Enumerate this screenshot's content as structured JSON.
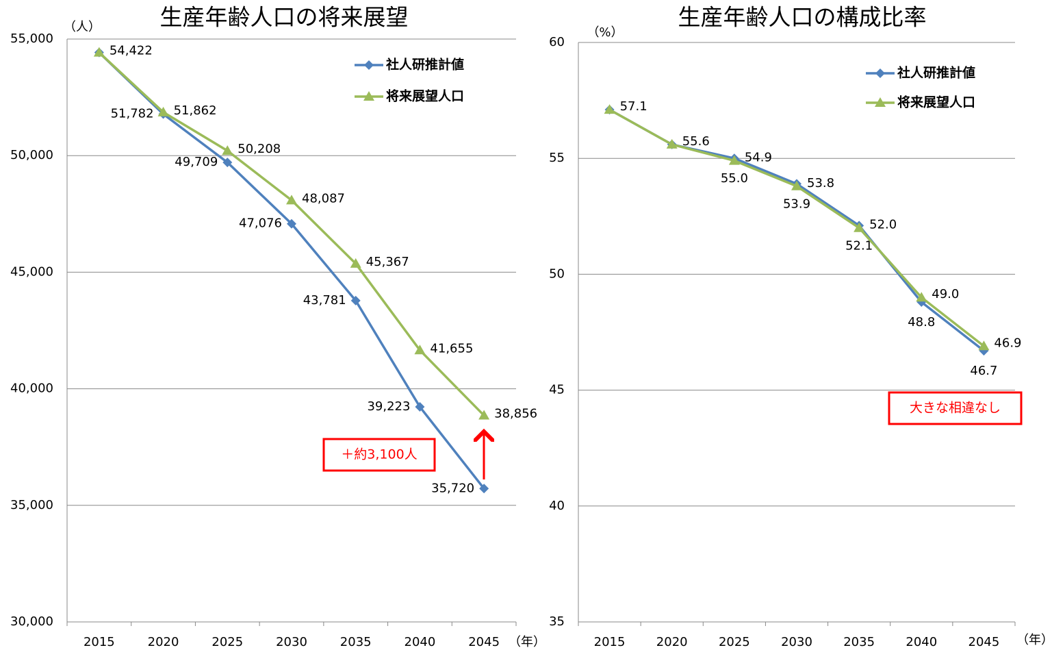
{
  "chart_data": [
    {
      "type": "line",
      "title": "生産年齢人口の将来展望",
      "y_label": "（人）",
      "x_label": "（年）",
      "categories": [
        "2015",
        "2020",
        "2025",
        "2030",
        "2035",
        "2040",
        "2045"
      ],
      "ylim": [
        30000,
        55000
      ],
      "yticks": [
        {
          "value": 30000,
          "label": "30,000"
        },
        {
          "value": 35000,
          "label": "35,000"
        },
        {
          "value": 40000,
          "label": "40,000"
        },
        {
          "value": 45000,
          "label": "45,000"
        },
        {
          "value": 50000,
          "label": "50,000"
        },
        {
          "value": 55000,
          "label": "55,000"
        }
      ],
      "grid": true,
      "legend": "top-right",
      "series": [
        {
          "name": "社人研推計値",
          "color": "#4f81bd",
          "marker": "diamond",
          "values": [
            54422,
            51782,
            49709,
            47076,
            43781,
            39223,
            35720
          ],
          "value_labels": [
            null,
            "51,782",
            "49,709",
            "47,076",
            "43,781",
            "39,223",
            "35,720"
          ]
        },
        {
          "name": "将来展望人口",
          "color": "#9bbb59",
          "marker": "triangle",
          "values": [
            54422,
            51862,
            50208,
            48087,
            45367,
            41655,
            38856
          ],
          "value_labels": [
            "54,422",
            "51,862",
            "50,208",
            "48,087",
            "45,367",
            "41,655",
            "38,856"
          ]
        }
      ],
      "annotation": "＋約3,100人"
    },
    {
      "type": "line",
      "title": "生産年齢人口の構成比率",
      "y_label": "（%）",
      "x_label": "（年）",
      "categories": [
        "2015",
        "2020",
        "2025",
        "2030",
        "2035",
        "2040",
        "2045"
      ],
      "ylim": [
        35,
        60
      ],
      "yticks": [
        35,
        40,
        45,
        50,
        55,
        60
      ],
      "grid": true,
      "legend": "top-right",
      "series": [
        {
          "name": "社人研推計値",
          "color": "#4f81bd",
          "marker": "diamond",
          "values": [
            57.1,
            55.6,
            55.0,
            53.9,
            52.1,
            48.8,
            46.7
          ],
          "value_labels": [
            null,
            null,
            "55.0",
            "53.9",
            "52.1",
            "48.8",
            "46.7"
          ]
        },
        {
          "name": "将来展望人口",
          "color": "#9bbb59",
          "marker": "triangle",
          "values": [
            57.1,
            55.6,
            54.9,
            53.8,
            52.0,
            49.0,
            46.9
          ],
          "value_labels": [
            "57.1",
            "55.6",
            "54.9",
            "53.8",
            "52.0",
            "49.0",
            "46.9"
          ]
        }
      ],
      "annotation": "大きな相違なし"
    }
  ]
}
